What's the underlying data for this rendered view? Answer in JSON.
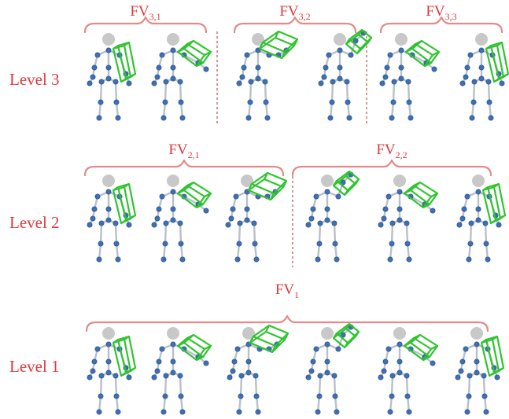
{
  "levels": [
    {
      "label": "Level 3",
      "groups": [
        {
          "base": "FV",
          "sub": "3,1",
          "poses": [
            "A",
            "B"
          ]
        },
        {
          "base": "FV",
          "sub": "3,2",
          "poses": [
            "C",
            "D"
          ]
        },
        {
          "base": "FV",
          "sub": "3,3",
          "poses": [
            "B",
            "A"
          ]
        }
      ]
    },
    {
      "label": "Level 2",
      "groups": [
        {
          "base": "FV",
          "sub": "2,1",
          "poses": [
            "A",
            "B",
            "C"
          ]
        },
        {
          "base": "FV",
          "sub": "2,2",
          "poses": [
            "D",
            "B",
            "A"
          ]
        }
      ]
    },
    {
      "label": "Level 1",
      "groups": [
        {
          "base": "FV",
          "sub": "1",
          "poses": [
            "A",
            "B",
            "C",
            "D",
            "B",
            "A"
          ]
        }
      ]
    }
  ],
  "colors": {
    "label": "#e0393b",
    "brace": "#e58a88",
    "divider": "#c0504d",
    "bone": "#b8c0c8",
    "joint": "#3f6fb0",
    "head": "#c8c8c8",
    "cube": "#2fc42f"
  }
}
